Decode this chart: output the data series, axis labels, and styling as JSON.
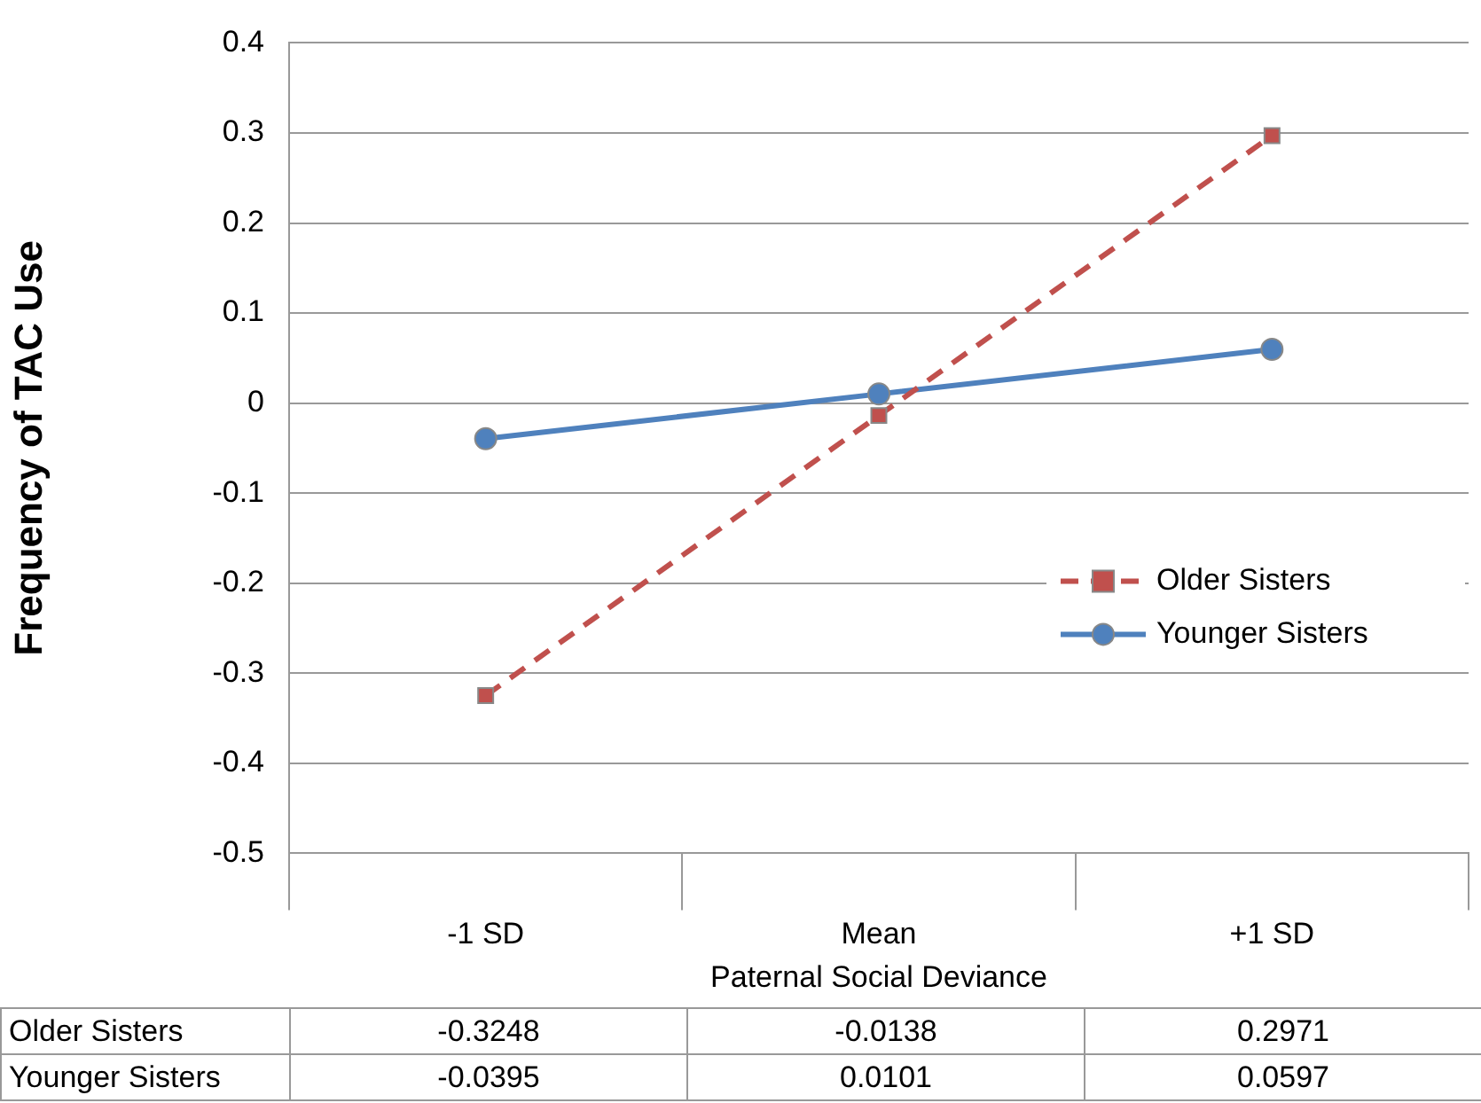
{
  "chart_data": {
    "type": "line",
    "xlabel": "Paternal Social Deviance",
    "ylabel": "Frequency of TAC Use",
    "categories": [
      "-1 SD",
      "Mean",
      "+1 SD"
    ],
    "series": [
      {
        "name": "Older Sisters",
        "color": "#c0504d",
        "values": [
          -0.3248,
          -0.0138,
          0.2971
        ],
        "marker": "square",
        "line_style": "dashed"
      },
      {
        "name": "Younger Sisters",
        "color": "#4f81bd",
        "values": [
          -0.0395,
          0.0101,
          0.0597
        ],
        "marker": "circle",
        "line_style": "solid"
      }
    ],
    "ylim": [
      -0.5,
      0.4
    ],
    "yticks": [
      -0.5,
      -0.4,
      -0.3,
      -0.2,
      -0.1,
      0,
      0.1,
      0.2,
      0.3,
      0.4
    ],
    "grid": "y",
    "legend": "right",
    "data_labels": true
  }
}
